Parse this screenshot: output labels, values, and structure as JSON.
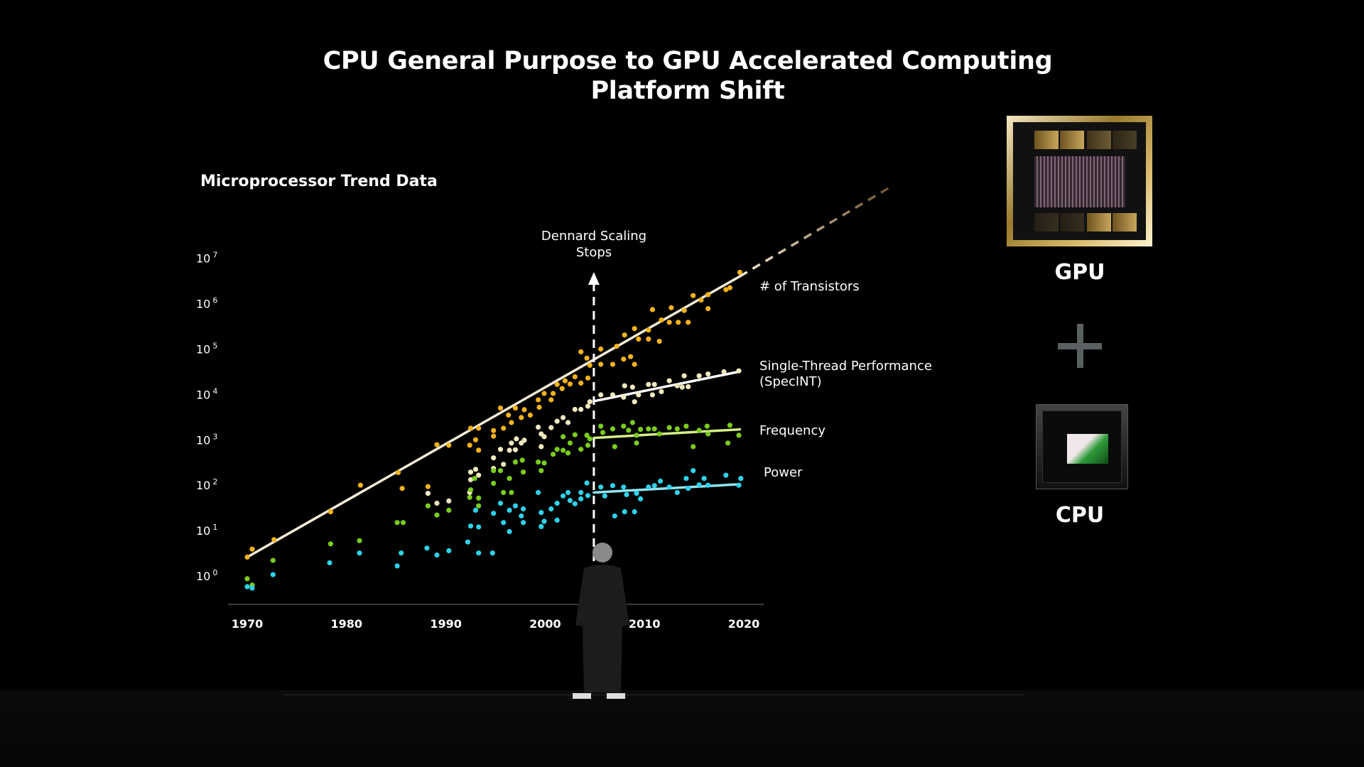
{
  "slide": {
    "title_line1": "CPU General Purpose to GPU Accelerated Computing",
    "title_line2": "Platform Shift",
    "gpu_label": "GPU",
    "cpu_label": "CPU",
    "plus_icon": "plus-icon"
  },
  "chart_data": {
    "type": "scatter",
    "title": "Microprocessor Trend Data",
    "xlabel": "",
    "ylabel": "",
    "xlim": [
      1970,
      2020
    ],
    "ylim": [
      1,
      10000000
    ],
    "y_scale": "log",
    "grid": false,
    "legend": "right (labels beside series)",
    "x_ticks": [
      "1970",
      "1980",
      "1990",
      "2000",
      "2010",
      "2020"
    ],
    "y_ticks": [
      {
        "base": "10",
        "exp": "7"
      },
      {
        "base": "10",
        "exp": "6"
      },
      {
        "base": "10",
        "exp": "5"
      },
      {
        "base": "10",
        "exp": "4"
      },
      {
        "base": "10",
        "exp": "3"
      },
      {
        "base": "10",
        "exp": "2"
      },
      {
        "base": "10",
        "exp": "1"
      },
      {
        "base": "10",
        "exp": "0"
      }
    ],
    "annotation": {
      "line1": "Dennard Scaling",
      "line2": "Stops",
      "year": 2004.9
    },
    "series": [
      {
        "name": "# of Transistors",
        "label_line2": "",
        "color": "#f5b21a",
        "trend_color": "#f6ecd6",
        "trend": [
          [
            1970,
            2.6
          ],
          [
            2019.6,
            4000000
          ]
        ],
        "projection": [
          [
            2019.6,
            4000000
          ],
          [
            2035,
            400000000
          ]
        ],
        "points": [
          [
            1970,
            2.6
          ],
          [
            1970.5,
            3.9
          ],
          [
            1972.7,
            6.3
          ],
          [
            1978.4,
            26
          ],
          [
            1981.4,
            100
          ],
          [
            1985.2,
            190
          ],
          [
            1985.6,
            85
          ],
          [
            1988.2,
            93
          ],
          [
            1989.1,
            780
          ],
          [
            1990.3,
            760
          ],
          [
            1992.5,
            1800
          ],
          [
            1993.3,
            1800
          ],
          [
            1992.4,
            760
          ],
          [
            1993,
            1000
          ],
          [
            1993.3,
            590
          ],
          [
            1994.8,
            1600
          ],
          [
            1994.8,
            1200
          ],
          [
            1995.5,
            5000
          ],
          [
            1995.8,
            1800
          ],
          [
            1996.3,
            3500
          ],
          [
            1996.6,
            2400
          ],
          [
            1997,
            5000
          ],
          [
            1997.6,
            3100
          ],
          [
            1997.9,
            4600
          ],
          [
            1998.5,
            3500
          ],
          [
            1999.3,
            7600
          ],
          [
            1999.4,
            5200
          ],
          [
            1999.9,
            10500
          ],
          [
            2000.6,
            7600
          ],
          [
            2000.8,
            10500
          ],
          [
            2001.2,
            16600
          ],
          [
            2001.7,
            13500
          ],
          [
            2002,
            20000
          ],
          [
            2002.5,
            17000
          ],
          [
            2003,
            24500
          ],
          [
            2003.6,
            17800
          ],
          [
            2003.6,
            87000
          ],
          [
            2004.2,
            63000
          ],
          [
            2004.3,
            23000
          ],
          [
            2004.5,
            44000
          ],
          [
            2005.6,
            100000
          ],
          [
            2005.6,
            46000
          ],
          [
            2006.8,
            46000
          ],
          [
            2007.2,
            115000
          ],
          [
            2007.9,
            60000
          ],
          [
            2008,
            204000
          ],
          [
            2008.6,
            68000
          ],
          [
            2009,
            282000
          ],
          [
            2009.4,
            166000
          ],
          [
            2009,
            46000
          ],
          [
            2010.4,
            263000
          ],
          [
            2010.4,
            166000
          ],
          [
            2010.8,
            741000
          ],
          [
            2011.5,
            148000
          ],
          [
            2011.7,
            437000
          ],
          [
            2012.5,
            389000
          ],
          [
            2012.7,
            813000
          ],
          [
            2013.4,
            389000
          ],
          [
            2014,
            708000
          ],
          [
            2014.4,
            389000
          ],
          [
            2014.9,
            1510000
          ],
          [
            2015.7,
            1200000
          ],
          [
            2016.4,
            1580000
          ],
          [
            2016.4,
            776000
          ],
          [
            2018.2,
            2040000
          ],
          [
            2018.6,
            2240000
          ],
          [
            2019.6,
            4900000
          ]
        ]
      },
      {
        "name": "Single-Thread Performance",
        "label_line2": "(SpecINT)",
        "color": "#efe9bf",
        "trend_color": "#ffffff",
        "trend": [
          [
            2004.9,
            7100
          ],
          [
            2019.6,
            32000
          ]
        ],
        "points": [
          [
            1988.2,
            66
          ],
          [
            1989.1,
            40
          ],
          [
            1990.3,
            45
          ],
          [
            1992.4,
            69
          ],
          [
            1992.5,
            195
          ],
          [
            1993,
            224
          ],
          [
            1992.5,
            132
          ],
          [
            1993.3,
            166
          ],
          [
            1994.8,
            400
          ],
          [
            1994.8,
            234
          ],
          [
            1995.5,
            617
          ],
          [
            1995.8,
            288
          ],
          [
            1996.4,
            589
          ],
          [
            1996.6,
            851
          ],
          [
            1997,
            603
          ],
          [
            1997.1,
            1050
          ],
          [
            1997.6,
            851
          ],
          [
            1997.9,
            977
          ],
          [
            1999.3,
            1900
          ],
          [
            1999.6,
            1350
          ],
          [
            1999.6,
            708
          ],
          [
            1999.9,
            1170
          ],
          [
            2000.6,
            1860
          ],
          [
            2001.2,
            2570
          ],
          [
            2001.8,
            3090
          ],
          [
            2002.3,
            2400
          ],
          [
            2003,
            4680
          ],
          [
            2003.6,
            4680
          ],
          [
            2004.3,
            5500
          ],
          [
            2004.5,
            6900
          ],
          [
            2005.6,
            9800
          ],
          [
            2006.8,
            9800
          ],
          [
            2007.9,
            8700
          ],
          [
            2008,
            15500
          ],
          [
            2008.8,
            14500
          ],
          [
            2009,
            6900
          ],
          [
            2009.4,
            9800
          ],
          [
            2010.4,
            16600
          ],
          [
            2011,
            16600
          ],
          [
            2010.8,
            9800
          ],
          [
            2011.7,
            11500
          ],
          [
            2012.5,
            20000
          ],
          [
            2013.3,
            15500
          ],
          [
            2013.8,
            14500
          ],
          [
            2014,
            25700
          ],
          [
            2014.4,
            14800
          ],
          [
            2015.5,
            25700
          ],
          [
            2016.4,
            28200
          ],
          [
            2018,
            31600
          ],
          [
            2019.5,
            33100
          ]
        ]
      },
      {
        "name": "Frequency",
        "label_line2": "",
        "color": "#7acd1c",
        "trend_color": "#d6ef86",
        "trend": [
          [
            2004.9,
            1100
          ],
          [
            2019.6,
            1700
          ]
        ],
        "points": [
          [
            1970,
            0.87
          ],
          [
            1970.5,
            0.63
          ],
          [
            1972.6,
            2.2
          ],
          [
            1978.4,
            5.1
          ],
          [
            1981.3,
            6
          ],
          [
            1985.1,
            15
          ],
          [
            1985.7,
            15
          ],
          [
            1988.2,
            35
          ],
          [
            1989.1,
            22
          ],
          [
            1990.3,
            28
          ],
          [
            1992.4,
            54
          ],
          [
            1992.5,
            79
          ],
          [
            1992.9,
            141
          ],
          [
            1993.3,
            52
          ],
          [
            1993.3,
            35
          ],
          [
            1994.8,
            110
          ],
          [
            1994.8,
            209
          ],
          [
            1995.5,
            209
          ],
          [
            1995.8,
            69
          ],
          [
            1996.4,
            141
          ],
          [
            1996.6,
            69
          ],
          [
            1997,
            324
          ],
          [
            1997.7,
            355
          ],
          [
            1997.8,
            195
          ],
          [
            1999.3,
            324
          ],
          [
            1999.6,
            209
          ],
          [
            1999.9,
            309
          ],
          [
            2000.8,
            479
          ],
          [
            2001.2,
            617
          ],
          [
            2001.8,
            1170
          ],
          [
            2001.8,
            589
          ],
          [
            2002.3,
            513
          ],
          [
            2002.5,
            851
          ],
          [
            2003,
            1290
          ],
          [
            2003.6,
            617
          ],
          [
            2004.2,
            1260
          ],
          [
            2004.3,
            759
          ],
          [
            2004.5,
            1050
          ],
          [
            2005.6,
            2000
          ],
          [
            2005.8,
            1450
          ],
          [
            2006.8,
            1740
          ],
          [
            2007,
            708
          ],
          [
            2007.9,
            2000
          ],
          [
            2008.4,
            1620
          ],
          [
            2008.8,
            2400
          ],
          [
            2009.2,
            1260
          ],
          [
            2009.2,
            851
          ],
          [
            2009.6,
            1700
          ],
          [
            2010.4,
            1740
          ],
          [
            2011,
            1740
          ],
          [
            2011.5,
            1350
          ],
          [
            2012.5,
            1860
          ],
          [
            2013.3,
            1740
          ],
          [
            2014.2,
            2000
          ],
          [
            2014.9,
            708
          ],
          [
            2015.5,
            1620
          ],
          [
            2016.3,
            2000
          ],
          [
            2016.4,
            1350
          ],
          [
            2018.6,
            2090
          ],
          [
            2018.4,
            851
          ],
          [
            2019.5,
            1260
          ]
        ]
      },
      {
        "name": "Power",
        "label_line2": "",
        "color": "#2ed2ea",
        "trend_color": "#8fe5f0",
        "trend": [
          [
            2004.9,
            69
          ],
          [
            2019.6,
            105
          ]
        ],
        "points": [
          [
            1970,
            0.58
          ],
          [
            1970.5,
            0.54
          ],
          [
            1972.6,
            1.07
          ],
          [
            1978.3,
            1.95
          ],
          [
            1981.3,
            3.2
          ],
          [
            1985.1,
            1.66
          ],
          [
            1985.5,
            3.2
          ],
          [
            1988.1,
            4.1
          ],
          [
            1989.1,
            2.9
          ],
          [
            1990.3,
            3.6
          ],
          [
            1992.2,
            5.6
          ],
          [
            1992.5,
            12.6
          ],
          [
            1993.3,
            12
          ],
          [
            1993.3,
            3.2
          ],
          [
            1993,
            28
          ],
          [
            1994.7,
            3.2
          ],
          [
            1994.8,
            24
          ],
          [
            1995.5,
            40
          ],
          [
            1995.8,
            15
          ],
          [
            1996.4,
            9.5
          ],
          [
            1996.4,
            28
          ],
          [
            1997,
            35
          ],
          [
            1997.6,
            21
          ],
          [
            1997.8,
            30
          ],
          [
            1997.8,
            15
          ],
          [
            1999.3,
            69
          ],
          [
            1999.6,
            25
          ],
          [
            1999.6,
            12.3
          ],
          [
            1999.9,
            16
          ],
          [
            2000.6,
            30
          ],
          [
            2001.2,
            40
          ],
          [
            2001.2,
            17
          ],
          [
            2001.8,
            58
          ],
          [
            2002.3,
            69
          ],
          [
            2002.5,
            46
          ],
          [
            2003,
            39
          ],
          [
            2003.6,
            69
          ],
          [
            2003.6,
            50
          ],
          [
            2004.2,
            112
          ],
          [
            2004.3,
            59
          ],
          [
            2005.6,
            91
          ],
          [
            2006,
            58
          ],
          [
            2006.8,
            98
          ],
          [
            2007,
            21
          ],
          [
            2007.9,
            91
          ],
          [
            2008,
            26
          ],
          [
            2008.2,
            62
          ],
          [
            2009,
            26
          ],
          [
            2009.2,
            66
          ],
          [
            2009.6,
            50
          ],
          [
            2010.4,
            91
          ],
          [
            2011,
            98
          ],
          [
            2011.6,
            123
          ],
          [
            2012.5,
            91
          ],
          [
            2013.3,
            69
          ],
          [
            2014.2,
            141
          ],
          [
            2014.4,
            85
          ],
          [
            2014.9,
            209
          ],
          [
            2015.5,
            102
          ],
          [
            2016,
            141
          ],
          [
            2016.4,
            100
          ],
          [
            2018.2,
            166
          ],
          [
            2019.5,
            100
          ],
          [
            2019.7,
            141
          ]
        ]
      }
    ]
  }
}
